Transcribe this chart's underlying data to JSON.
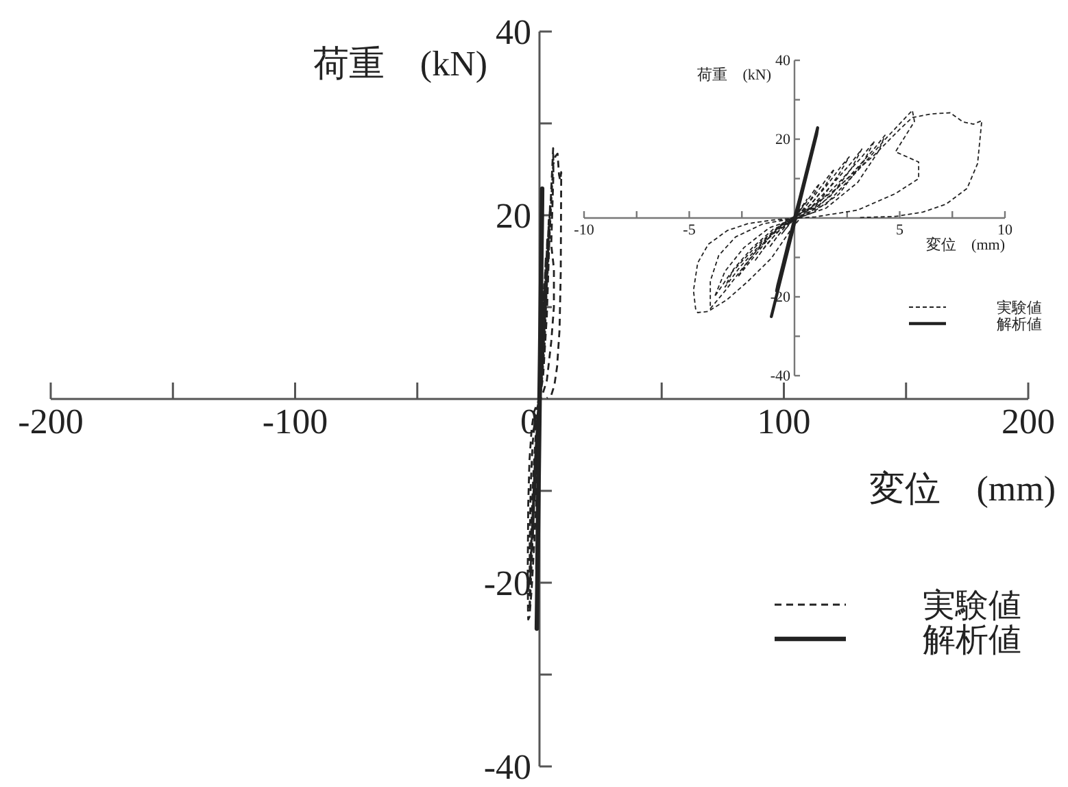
{
  "chart_data": [
    {
      "type": "line",
      "xlabel": "変位　(mm)",
      "ylabel": "荷重　(kN)",
      "xlim": [
        -200,
        200
      ],
      "ylim": [
        -40,
        40
      ],
      "xticks": [
        -200,
        {
          "value": -150,
          "label": null
        },
        -100,
        {
          "value": -50,
          "label": null
        },
        0,
        {
          "value": 50,
          "label": null
        },
        100,
        {
          "value": 150,
          "label": null
        },
        200
      ],
      "yticks": [
        40,
        {
          "value": 30,
          "label": null
        },
        20,
        {
          "value": 10,
          "label": null
        },
        {
          "value": -10,
          "label": null
        },
        -20,
        {
          "value": -30,
          "label": null
        },
        -40
      ],
      "legend": "bottom right",
      "series": [
        {
          "name": "実験値",
          "color": "#222222",
          "line_style": "dashed",
          "x": [
            0,
            0.3,
            0.6,
            0.4,
            0.1,
            -0.3,
            -0.6,
            -0.4,
            -0.1,
            0.5,
            1.0,
            1.2,
            0.9,
            0.4,
            0,
            -0.5,
            -1.0,
            -1.2,
            -0.8,
            -0.3,
            0.3,
            1.0,
            1.6,
            1.9,
            1.5,
            0.8,
            0.1,
            -0.6,
            -1.3,
            -1.9,
            -1.5,
            -0.8,
            -0.1,
            0.6,
            1.5,
            2.2,
            2.6,
            2.1,
            1.3,
            0.4,
            -0.8,
            -1.7,
            -2.4,
            -2.7,
            -2.1,
            -1.2,
            -0.2,
            0.8,
            1.8,
            2.7,
            3.2,
            2.7,
            1.7,
            0.6,
            -1.0,
            -2.0,
            -2.9,
            -3.3,
            -2.6,
            -1.5,
            -0.3,
            1.0,
            2.2,
            3.2,
            3.8,
            3.3,
            2.1,
            0.8,
            -1.2,
            -2.4,
            -3.3,
            -3.8,
            -3.1,
            -1.8,
            -0.4,
            1.2,
            2.6,
            3.7,
            4.3,
            4.0,
            3.0,
            1.5,
            0.2,
            -1.5,
            -2.8,
            -3.6,
            -4.0,
            -4.0,
            -3.3,
            -2.0,
            -0.6,
            1.5,
            3.0,
            4.4,
            5.6,
            5.7,
            4.8,
            5.9,
            5.9,
            4.8,
            3.0,
            1.0,
            -1.0,
            -2.2,
            -3.2,
            -4.1,
            -4.6,
            -4.8,
            -4.7,
            -4.6,
            -4.1,
            -3.2,
            -2.2,
            -1.1,
            -0.2,
            0.5,
            2.0,
            3.8,
            5.0,
            5.6,
            6.5,
            7.4,
            8.0,
            8.5,
            8.9,
            8.7,
            8.2,
            7.2,
            6.1,
            4.8,
            3.0
          ],
          "values": [
            0,
            2.5,
            4.8,
            3.0,
            0.5,
            -2.0,
            -4.0,
            -2.6,
            -0.4,
            3.5,
            7.5,
            8.8,
            5.8,
            1.8,
            0,
            -2.5,
            -6.0,
            -7.5,
            -4.6,
            -1.2,
            1.5,
            6.0,
            10.5,
            12.5,
            8.5,
            3.5,
            0.2,
            -2.5,
            -6.5,
            -11.0,
            -8.0,
            -3.5,
            -0.2,
            2.5,
            8.0,
            13.0,
            15.5,
            11.0,
            5.0,
            0.8,
            -2.8,
            -7.5,
            -12.5,
            -15.0,
            -11.0,
            -5.0,
            -0.3,
            2.8,
            8.5,
            14.0,
            17.5,
            12.5,
            5.5,
            1.0,
            -2.8,
            -7.5,
            -13.0,
            -17.5,
            -12.5,
            -6.0,
            -0.4,
            3.0,
            9.5,
            15.5,
            19.5,
            14.5,
            6.0,
            1.2,
            -2.5,
            -7.5,
            -13.5,
            -20.0,
            -14.5,
            -7.0,
            -0.6,
            3.2,
            10.5,
            17.0,
            21.0,
            17.0,
            9.0,
            2.5,
            0.1,
            -1.5,
            -4.8,
            -9.5,
            -16.0,
            -23.0,
            -18.5,
            -9.5,
            -1.5,
            3.5,
            12.0,
            20.5,
            27.3,
            24.5,
            16.8,
            14.2,
            10.0,
            6.2,
            2.0,
            0.3,
            -0.5,
            -1.4,
            -3.2,
            -6.7,
            -11.4,
            -18.4,
            -23.0,
            -24.0,
            -23.7,
            -20.7,
            -16.0,
            -10.2,
            -3.2,
            1.5,
            7.5,
            16.0,
            22.5,
            25.5,
            26.4,
            26.7,
            24.4,
            23.8,
            24.7,
            13.8,
            7.5,
            3.5,
            1.5,
            0.4,
            0.1
          ]
        },
        {
          "name": "解析値",
          "color": "#222222",
          "line_style": "solid",
          "x": [
            0,
            0.25,
            0.5,
            0.45,
            -0.3,
            -0.55,
            -0.5,
            0.75,
            0.7,
            -0.85,
            -0.8,
            1.1,
            1.05,
            -1.1
          ],
          "values": [
            0,
            5.0,
            10.2,
            9.0,
            -6.5,
            -12.0,
            -10.8,
            15.5,
            14.2,
            -18.5,
            -17.2,
            22.9,
            21.2,
            -25.0
          ]
        }
      ]
    },
    {
      "type": "line",
      "xlabel": "変位　(mm)",
      "ylabel": "荷重　(kN)",
      "xlim": [
        -10,
        10
      ],
      "ylim": [
        -40,
        40
      ],
      "xticks": [
        -10,
        {
          "value": -7.5,
          "label": null
        },
        -5,
        {
          "value": -2.5,
          "label": null
        },
        {
          "value": 2.5,
          "label": null
        },
        5,
        {
          "value": 7.5,
          "label": null
        },
        10
      ],
      "yticks": [
        40,
        {
          "value": 30,
          "label": null
        },
        20,
        {
          "value": 10,
          "label": null
        },
        {
          "value": -10,
          "label": null
        },
        -20,
        {
          "value": -30,
          "label": null
        },
        -40
      ],
      "legend": "bottom right",
      "series": [
        {
          "name": "実験値",
          "color": "#222222",
          "line_style": "dashed",
          "x": [
            0,
            0.3,
            0.6,
            0.4,
            0.1,
            -0.3,
            -0.6,
            -0.4,
            -0.1,
            0.5,
            1.0,
            1.2,
            0.9,
            0.4,
            0,
            -0.5,
            -1.0,
            -1.2,
            -0.8,
            -0.3,
            0.3,
            1.0,
            1.6,
            1.9,
            1.5,
            0.8,
            0.1,
            -0.6,
            -1.3,
            -1.9,
            -1.5,
            -0.8,
            -0.1,
            0.6,
            1.5,
            2.2,
            2.6,
            2.1,
            1.3,
            0.4,
            -0.8,
            -1.7,
            -2.4,
            -2.7,
            -2.1,
            -1.2,
            -0.2,
            0.8,
            1.8,
            2.7,
            3.2,
            2.7,
            1.7,
            0.6,
            -1.0,
            -2.0,
            -2.9,
            -3.3,
            -2.6,
            -1.5,
            -0.3,
            1.0,
            2.2,
            3.2,
            3.8,
            3.3,
            2.1,
            0.8,
            -1.2,
            -2.4,
            -3.3,
            -3.8,
            -3.1,
            -1.8,
            -0.4,
            1.2,
            2.6,
            3.7,
            4.3,
            4.0,
            3.0,
            1.5,
            0.2,
            -1.5,
            -2.8,
            -3.6,
            -4.0,
            -4.0,
            -3.3,
            -2.0,
            -0.6,
            1.5,
            3.0,
            4.4,
            5.6,
            5.7,
            4.8,
            5.9,
            5.9,
            4.8,
            3.0,
            1.0,
            -1.0,
            -2.2,
            -3.2,
            -4.1,
            -4.6,
            -4.8,
            -4.7,
            -4.6,
            -4.1,
            -3.2,
            -2.2,
            -1.1,
            -0.2,
            0.5,
            2.0,
            3.8,
            5.0,
            5.6,
            6.5,
            7.4,
            8.0,
            8.5,
            8.9,
            8.7,
            8.2,
            7.2,
            6.1,
            4.8,
            3.0
          ],
          "values": [
            0,
            2.5,
            4.8,
            3.0,
            0.5,
            -2.0,
            -4.0,
            -2.6,
            -0.4,
            3.5,
            7.5,
            8.8,
            5.8,
            1.8,
            0,
            -2.5,
            -6.0,
            -7.5,
            -4.6,
            -1.2,
            1.5,
            6.0,
            10.5,
            12.5,
            8.5,
            3.5,
            0.2,
            -2.5,
            -6.5,
            -11.0,
            -8.0,
            -3.5,
            -0.2,
            2.5,
            8.0,
            13.0,
            15.5,
            11.0,
            5.0,
            0.8,
            -2.8,
            -7.5,
            -12.5,
            -15.0,
            -11.0,
            -5.0,
            -0.3,
            2.8,
            8.5,
            14.0,
            17.5,
            12.5,
            5.5,
            1.0,
            -2.8,
            -7.5,
            -13.0,
            -17.5,
            -12.5,
            -6.0,
            -0.4,
            3.0,
            9.5,
            15.5,
            19.5,
            14.5,
            6.0,
            1.2,
            -2.5,
            -7.5,
            -13.5,
            -20.0,
            -14.5,
            -7.0,
            -0.6,
            3.2,
            10.5,
            17.0,
            21.0,
            17.0,
            9.0,
            2.5,
            0.1,
            -1.5,
            -4.8,
            -9.5,
            -16.0,
            -23.0,
            -18.5,
            -9.5,
            -1.5,
            3.5,
            12.0,
            20.5,
            27.3,
            24.5,
            16.8,
            14.2,
            10.0,
            6.2,
            2.0,
            0.3,
            -0.5,
            -1.4,
            -3.2,
            -6.7,
            -11.4,
            -18.4,
            -23.0,
            -24.0,
            -23.7,
            -20.7,
            -16.0,
            -10.2,
            -3.2,
            1.5,
            7.5,
            16.0,
            22.5,
            25.5,
            26.4,
            26.7,
            24.4,
            23.8,
            24.7,
            13.8,
            7.5,
            3.5,
            1.5,
            0.4,
            0.1
          ]
        },
        {
          "name": "解析値",
          "color": "#222222",
          "line_style": "solid",
          "x": [
            0,
            0.25,
            0.5,
            0.45,
            -0.3,
            -0.55,
            -0.5,
            0.75,
            0.7,
            -0.85,
            -0.8,
            1.1,
            1.05,
            -1.1
          ],
          "values": [
            0,
            5.0,
            10.2,
            9.0,
            -6.5,
            -12.0,
            -10.8,
            15.5,
            14.2,
            -18.5,
            -17.2,
            22.9,
            21.2,
            -25.0
          ]
        }
      ]
    }
  ]
}
